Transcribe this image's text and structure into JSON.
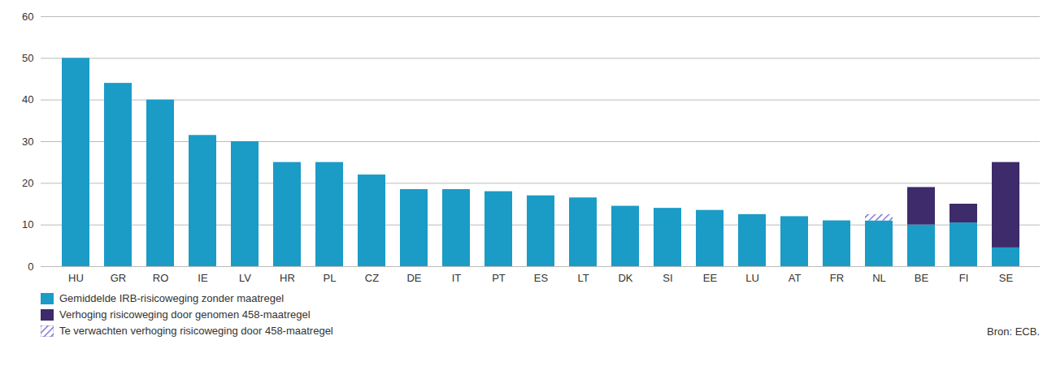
{
  "chart_data": {
    "type": "bar",
    "stacked": true,
    "categories": [
      "HU",
      "GR",
      "RO",
      "IE",
      "LV",
      "HR",
      "PL",
      "CZ",
      "DE",
      "IT",
      "PT",
      "ES",
      "LT",
      "DK",
      "SI",
      "EE",
      "LU",
      "AT",
      "FR",
      "NL",
      "BE",
      "FI",
      "SE"
    ],
    "series": [
      {
        "name": "Gemiddelde IRB-risicoweging zonder maatregel",
        "color": "#1a9cc7",
        "values": [
          50,
          44,
          40,
          31.5,
          30,
          25,
          25,
          22,
          18.5,
          18.5,
          18,
          17,
          16.5,
          14.5,
          14,
          13.5,
          12.5,
          12,
          11,
          11,
          10,
          10.5,
          4.5
        ]
      },
      {
        "name": "Verhoging risicoweging door genomen 458-maatregel",
        "color": "#3d2b6b",
        "values": [
          0,
          0,
          0,
          0,
          0,
          0,
          0,
          0,
          0,
          0,
          0,
          0,
          0,
          0,
          0,
          0,
          0,
          0,
          0,
          0,
          9,
          4.5,
          20.5
        ]
      },
      {
        "name": "Te verwachten verhoging risicoweging door 458-maatregel",
        "color": "#6a5acd",
        "values": [
          0,
          0,
          0,
          0,
          0,
          0,
          0,
          0,
          0,
          0,
          0,
          0,
          0,
          0,
          0,
          0,
          0,
          0,
          0,
          1.5,
          0,
          0,
          0
        ]
      }
    ],
    "ylim": [
      0,
      60
    ],
    "yticks": [
      0,
      10,
      20,
      30,
      40,
      50,
      60
    ],
    "grid": true,
    "legend": "lower left",
    "annotations": [
      "Bron: ECB."
    ]
  }
}
